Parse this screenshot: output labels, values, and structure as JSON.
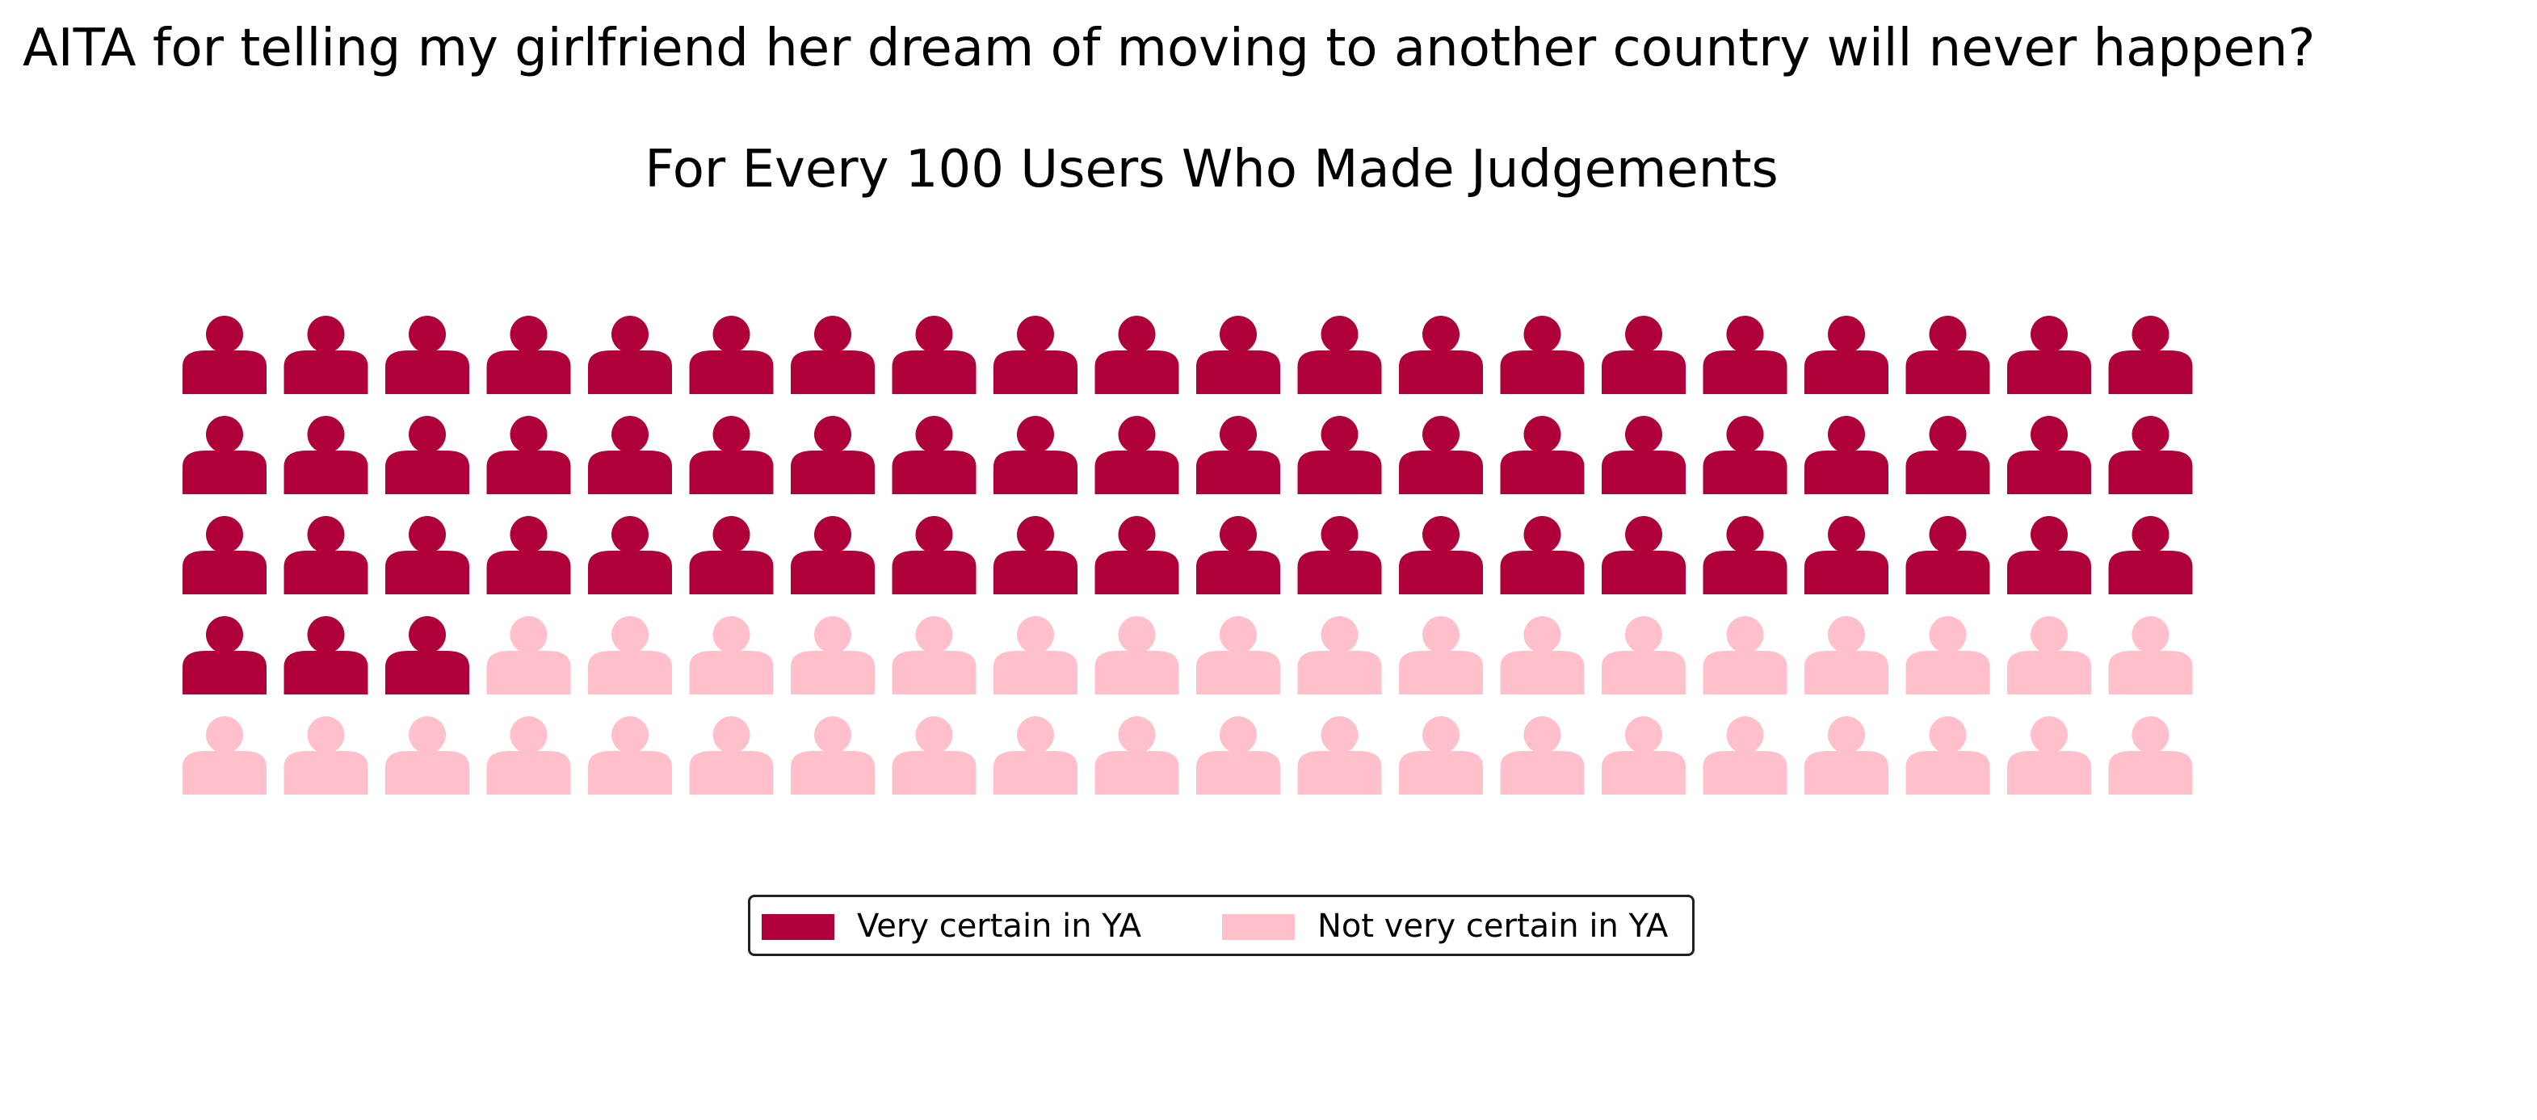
{
  "header": {
    "title": "AITA for telling my girlfriend her dream of moving to another country will never happen?",
    "subtitle": "For Every 100 Users Who Made Judgements"
  },
  "colors": {
    "very_certain": "#B0003A",
    "not_very_certain": "#FFC0CB"
  },
  "chart_data": {
    "type": "waffle",
    "title": "For Every 100 Users Who Made Judgements",
    "icon": "person-icon",
    "rows": 5,
    "columns": 20,
    "total": 100,
    "categories": [
      "Very certain in YA",
      "Not very certain in YA"
    ],
    "values": [
      63,
      37
    ],
    "series": [
      {
        "name": "Very certain in YA",
        "value": 63,
        "color": "#B0003A"
      },
      {
        "name": "Not very certain in YA",
        "value": 37,
        "color": "#FFC0CB"
      }
    ],
    "legend_position": "bottom-center"
  },
  "legend": {
    "items": [
      {
        "label": "Very certain in YA",
        "color": "#B0003A"
      },
      {
        "label": "Not very certain in YA",
        "color": "#FFC0CB"
      }
    ]
  }
}
